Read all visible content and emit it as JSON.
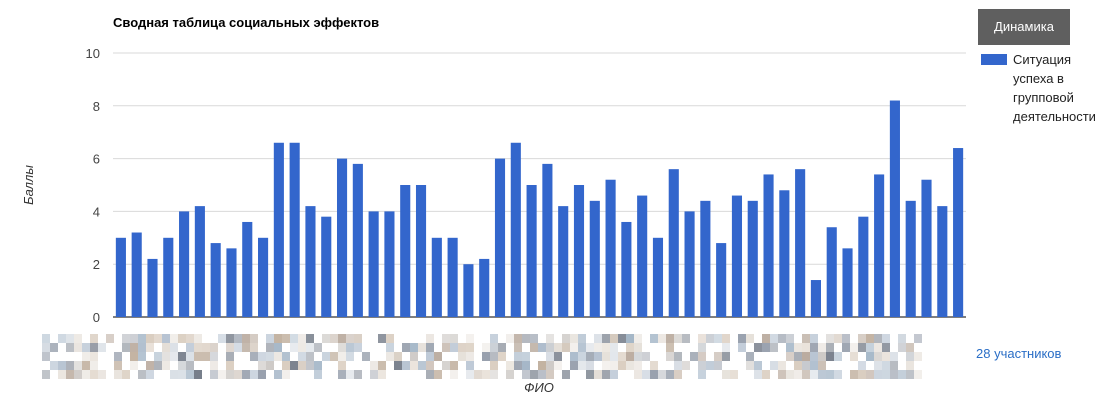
{
  "chart_data": {
    "type": "bar",
    "title": "Сводная таблица социальных эффектов",
    "xlabel": "ФИО",
    "ylabel": "Баллы",
    "ylim": [
      0,
      10
    ],
    "yticks": [
      0,
      2,
      4,
      6,
      8,
      10
    ],
    "grid": true,
    "legend_position": "right",
    "series": [
      {
        "name": "Ситуация успеха в групповой деятельности",
        "color": "#3366cc",
        "values": [
          3.0,
          3.2,
          2.2,
          3.0,
          4.0,
          4.2,
          2.8,
          2.6,
          3.6,
          3.0,
          6.6,
          6.6,
          4.2,
          3.8,
          6.0,
          5.8,
          4.0,
          4.0,
          5.0,
          5.0,
          3.0,
          3.0,
          2.0,
          2.2,
          6.0,
          6.6,
          5.0,
          5.8,
          4.2,
          5.0,
          4.4,
          5.2,
          3.6,
          4.6,
          3.0,
          5.6,
          4.0,
          4.4,
          2.8,
          4.6,
          4.4,
          5.4,
          4.8,
          5.6,
          1.4,
          3.4,
          2.6,
          3.8,
          5.4,
          8.2,
          4.4,
          5.2,
          4.2,
          6.4
        ]
      }
    ]
  },
  "legend": {
    "lines": [
      "Ситуация",
      "успеха в",
      "групповой",
      "деятельности"
    ]
  },
  "dynamics_button": {
    "label": "Динамика"
  },
  "participants_link": {
    "label": "28 участников"
  },
  "colors": {
    "bar": "#3366cc",
    "button_bg": "#5f5f5f",
    "link": "#2a6ec6"
  }
}
